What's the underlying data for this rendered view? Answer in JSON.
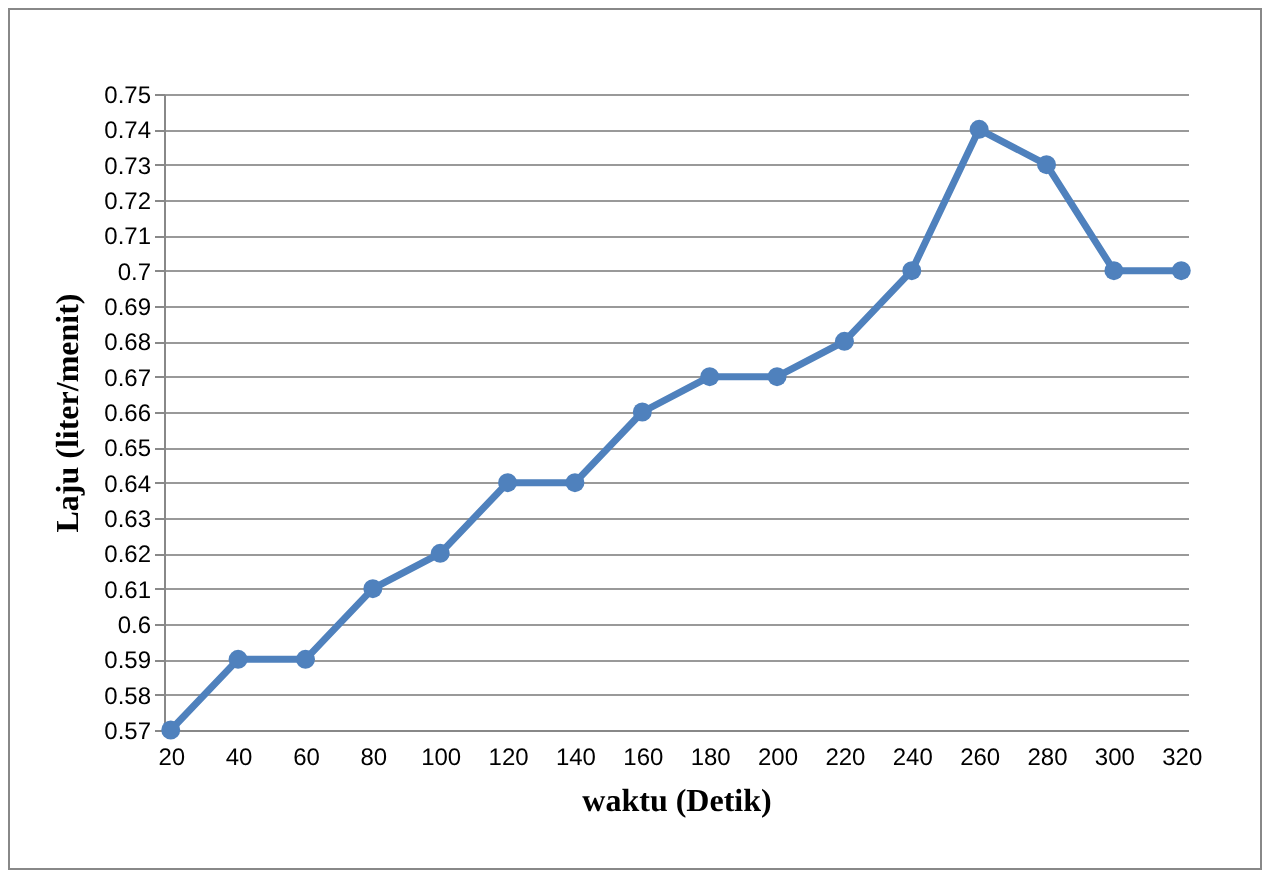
{
  "chart_data": {
    "type": "line",
    "xlabel": "waktu (Detik)",
    "ylabel": "Laju (liter/menit)",
    "categories": [
      "20",
      "40",
      "60",
      "80",
      "100",
      "120",
      "140",
      "160",
      "180",
      "200",
      "220",
      "240",
      "260",
      "280",
      "300",
      "320"
    ],
    "series": [
      {
        "color": "#4f81bd",
        "values": [
          0.57,
          0.59,
          0.59,
          0.61,
          0.62,
          0.64,
          0.64,
          0.66,
          0.67,
          0.67,
          0.68,
          0.7,
          0.74,
          0.73,
          0.7,
          0.7
        ]
      }
    ],
    "ylim": [
      0.57,
      0.75
    ],
    "yticks": [
      0.57,
      0.58,
      0.59,
      0.6,
      0.61,
      0.62,
      0.63,
      0.64,
      0.65,
      0.66,
      0.67,
      0.68,
      0.69,
      0.7,
      0.71,
      0.72,
      0.73,
      0.74,
      0.75
    ],
    "grid": "y",
    "marker": "circle",
    "line_style": "solid"
  }
}
